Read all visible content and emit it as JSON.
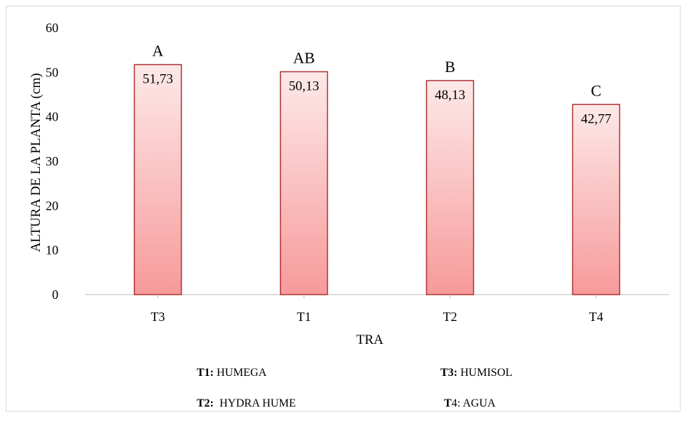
{
  "chart_data": {
    "type": "bar",
    "categories": [
      "T3",
      "T1",
      "T2",
      "T4"
    ],
    "values": [
      51.73,
      50.13,
      48.13,
      42.77
    ],
    "value_labels": [
      "51,73",
      "50,13",
      "48,13",
      "42,77"
    ],
    "significance_letters": [
      "A",
      "AB",
      "B",
      "C"
    ],
    "title": "",
    "xlabel": "TRA",
    "ylabel": "ALTURA DE LA PLANTA (cm)",
    "ylim": [
      0,
      60
    ],
    "yticks": [
      0,
      10,
      20,
      30,
      40,
      50,
      60
    ],
    "grid": false,
    "legend": false,
    "colors": {
      "bar_top": "#fde9e9",
      "bar_bottom": "#f79a9a",
      "bar_border": "#b03030",
      "axis": "#bfbfbf"
    }
  },
  "legend_notes": [
    {
      "code": "T1:",
      "name": " HUMEGA"
    },
    {
      "code": "T3:",
      "name": " HUMISOL"
    },
    {
      "code": "T2:",
      "name": "  HYDRA HUME"
    },
    {
      "code": "T",
      "name": "4: AGUA"
    }
  ]
}
